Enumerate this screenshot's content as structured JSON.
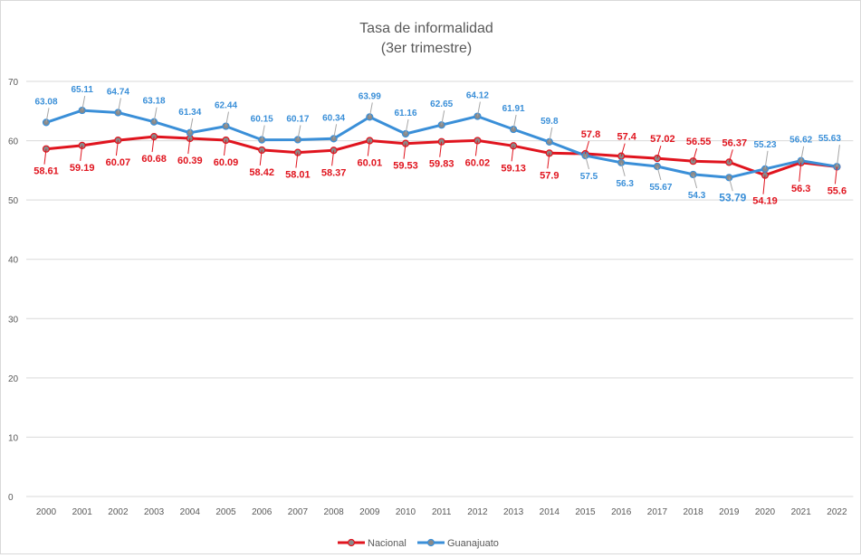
{
  "chart_data": {
    "type": "line",
    "title": "Tasa de informalidad",
    "subtitle": "(3er trimestre)",
    "xlabel": "",
    "ylabel": "",
    "categories": [
      "2000",
      "2001",
      "2002",
      "2003",
      "2004",
      "2005",
      "2006",
      "2007",
      "2008",
      "2009",
      "2010",
      "2011",
      "2012",
      "2013",
      "2014",
      "2015",
      "2016",
      "2017",
      "2018",
      "2019",
      "2020",
      "2021",
      "2022"
    ],
    "ylim": [
      0,
      70
    ],
    "yticks": [
      "0",
      "10",
      "20",
      "30",
      "40",
      "50",
      "60",
      "70"
    ],
    "grid": true,
    "legend_position": "bottom",
    "series": [
      {
        "name": "Nacional",
        "color": "#e0141e",
        "values": [
          58.61,
          59.19,
          60.07,
          60.68,
          60.39,
          60.09,
          58.42,
          58.01,
          58.37,
          60.01,
          59.53,
          59.83,
          60.02,
          59.13,
          57.9,
          57.8,
          57.4,
          57.02,
          56.55,
          56.37,
          54.19,
          56.3,
          55.6
        ],
        "labels": [
          "58.61",
          "59.19",
          "60.07",
          "60.68",
          "60.39",
          "60.09",
          "58.42",
          "58.01",
          "58.37",
          "60.01",
          "59.53",
          "59.83",
          "60.02",
          "59.13",
          "57.9",
          "57.8",
          "57.4",
          "57.02",
          "56.55",
          "56.37",
          "54.19",
          "56.3",
          "55.6"
        ]
      },
      {
        "name": "Guanajuato",
        "color": "#3a8fd8",
        "values": [
          63.08,
          65.11,
          64.74,
          63.18,
          61.34,
          62.44,
          60.15,
          60.17,
          60.34,
          63.99,
          61.16,
          62.65,
          64.12,
          61.91,
          59.8,
          57.5,
          56.3,
          55.67,
          54.3,
          53.79,
          55.23,
          56.62,
          55.63
        ],
        "labels": [
          "63.08",
          "65.11",
          "64.74",
          "63.18",
          "61.34",
          "62.44",
          "60.15",
          "60.17",
          "60.34",
          "63.99",
          "61.16",
          "62.65",
          "64.12",
          "61.91",
          "59.8",
          "57.5",
          "56.3",
          "55.67",
          "54.3",
          "53.79",
          "55.23",
          "56.62",
          "55.63"
        ]
      }
    ]
  }
}
